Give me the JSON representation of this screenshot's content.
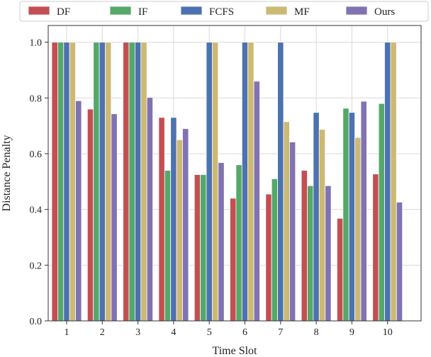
{
  "chart_data": {
    "type": "bar",
    "title": "",
    "xlabel": "Time Slot",
    "ylabel": "Distance Penalty",
    "categories": [
      "1",
      "2",
      "3",
      "4",
      "5",
      "6",
      "7",
      "8",
      "9",
      "10"
    ],
    "yticks": [
      "0.0",
      "0.2",
      "0.4",
      "0.6",
      "0.8",
      "1.0"
    ],
    "ylim": [
      0,
      1.06
    ],
    "grid": true,
    "legend_position": "top",
    "series": [
      {
        "name": "DF",
        "color": "#c44e52",
        "values": [
          1.0,
          0.76,
          1.0,
          0.73,
          0.525,
          0.44,
          0.455,
          0.54,
          0.368,
          0.527
        ]
      },
      {
        "name": "IF",
        "color": "#55a868",
        "values": [
          1.0,
          1.0,
          1.0,
          0.54,
          0.525,
          0.56,
          0.51,
          0.485,
          0.763,
          0.78
        ]
      },
      {
        "name": "FCFS",
        "color": "#4c72b0",
        "values": [
          1.0,
          1.0,
          1.0,
          0.73,
          1.0,
          1.0,
          1.0,
          0.748,
          0.748,
          1.0
        ]
      },
      {
        "name": "MF",
        "color": "#ccb974",
        "values": [
          1.0,
          1.0,
          1.0,
          0.65,
          1.0,
          1.0,
          0.715,
          0.687,
          0.658,
          1.0
        ]
      },
      {
        "name": "Ours",
        "color": "#8172b2",
        "values": [
          0.79,
          0.743,
          0.802,
          0.69,
          0.568,
          0.86,
          0.642,
          0.485,
          0.788,
          0.426
        ]
      }
    ]
  }
}
